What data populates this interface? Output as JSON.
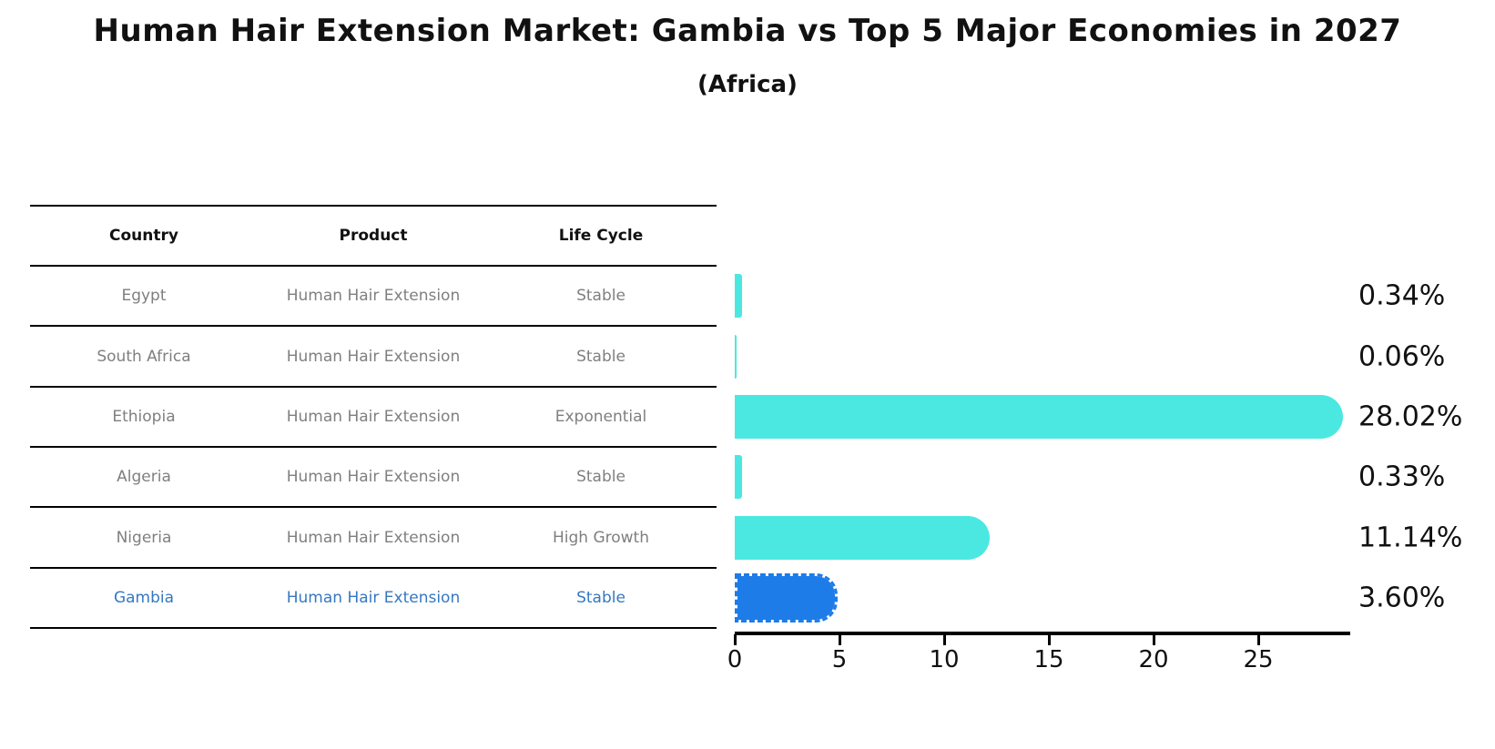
{
  "title": "Human Hair Extension Market: Gambia vs Top 5 Major Economies in 2027",
  "subtitle": "(Africa)",
  "table": {
    "headers": [
      "Country",
      "Product",
      "Life Cycle"
    ],
    "rows": [
      {
        "country": "Egypt",
        "product": "Human Hair Extension",
        "life_cycle": "Stable",
        "highlight": false
      },
      {
        "country": "South Africa",
        "product": "Human Hair Extension",
        "life_cycle": "Stable",
        "highlight": false
      },
      {
        "country": "Ethiopia",
        "product": "Human Hair Extension",
        "life_cycle": "Exponential",
        "highlight": false
      },
      {
        "country": "Algeria",
        "product": "Human Hair Extension",
        "life_cycle": "Stable",
        "highlight": false
      },
      {
        "country": "Nigeria",
        "product": "Human Hair Extension",
        "life_cycle": "High Growth",
        "highlight": false
      },
      {
        "country": "Gambia",
        "product": "Human Hair Extension",
        "life_cycle": "Stable",
        "highlight": true
      }
    ]
  },
  "chart_data": {
    "type": "bar",
    "orientation": "horizontal",
    "categories": [
      "Egypt",
      "South Africa",
      "Ethiopia",
      "Algeria",
      "Nigeria",
      "Gambia"
    ],
    "values": [
      0.34,
      0.06,
      28.02,
      0.33,
      11.14,
      3.6
    ],
    "value_labels": [
      "0.34%",
      "0.06%",
      "28.02%",
      "0.33%",
      "11.14%",
      "3.60%"
    ],
    "xticks": [
      "0",
      "5",
      "10",
      "15",
      "20",
      "25"
    ],
    "xtick_values": [
      0,
      5,
      10,
      15,
      20,
      25
    ],
    "xlim": [
      0,
      29.4
    ],
    "grid": false,
    "legend": null,
    "highlight_index": 5,
    "bar_color": "#4BE8E2",
    "highlight_bar_color": "#1E7CE8",
    "highlight_text_color": "#3578C0"
  }
}
